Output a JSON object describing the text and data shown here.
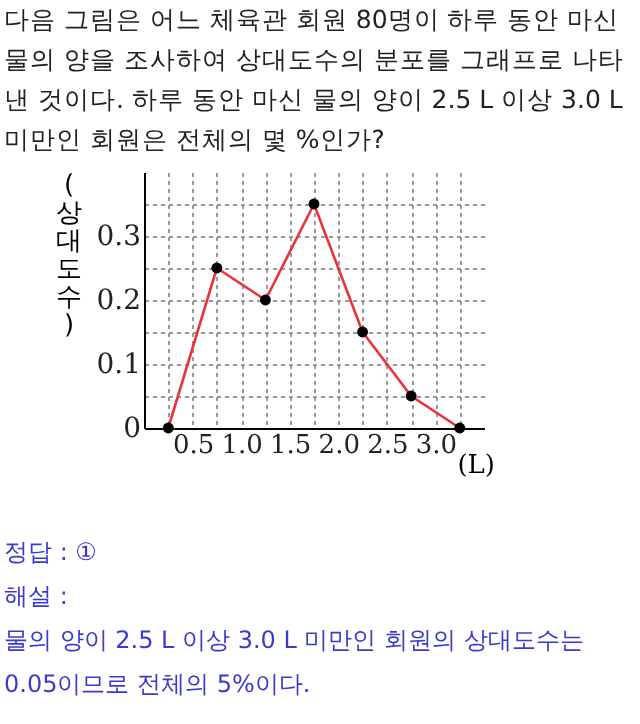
{
  "chart_data": {
    "type": "line",
    "title": "다음 그림은 어느 체육관 회원 80명이 하루 동안 마신 물의 양을 조사하여 상대도수의 분포를 그래프로 나타낸 것이다. 하루 동안 마신 물의 양이 2.5 L 이상 3.0 L 미만인 회원은 전체의 몇 %인가?",
    "xlabel": "(L)",
    "ylabel": "(상대도수)",
    "x": [
      0.25,
      0.75,
      1.25,
      1.75,
      2.25,
      2.75,
      3.25
    ],
    "series": [
      {
        "color": "#e8323c",
        "values": [
          0,
          0.25,
          0.2,
          0.35,
          0.15,
          0.05,
          0
        ]
      }
    ],
    "xlim": [
      0,
      3.5
    ],
    "xticks": [
      {
        "value": 0.25,
        "label": null
      },
      {
        "value": 0.5,
        "label": "0.5"
      },
      {
        "value": 0.75,
        "label": null
      },
      {
        "value": 1,
        "label": "1.0"
      },
      {
        "value": 1.25,
        "label": null
      },
      {
        "value": 1.5,
        "label": "1.5"
      },
      {
        "value": 1.75,
        "label": null
      },
      {
        "value": 2,
        "label": "2.0"
      },
      {
        "value": 2.25,
        "label": null
      },
      {
        "value": 2.5,
        "label": "2.5"
      },
      {
        "value": 2.75,
        "label": null
      },
      {
        "value": 3,
        "label": "3.0"
      },
      {
        "value": 3.25,
        "label": null
      }
    ],
    "ylim": [
      0,
      0.4
    ],
    "yticks": [
      {
        "value": 0,
        "label": "0"
      },
      {
        "value": 0.05,
        "label": null
      },
      {
        "value": 0.1,
        "label": "0.1"
      },
      {
        "value": 0.15,
        "label": null
      },
      {
        "value": 0.2,
        "label": "0.2"
      },
      {
        "value": 0.25,
        "label": null
      },
      {
        "value": 0.3,
        "label": "0.3"
      },
      {
        "value": 0.35,
        "label": null
      }
    ],
    "grid": true,
    "marker": "circle",
    "line_style": "solid",
    "annotations": [
      "정답 : ①",
      "해설 :",
      "물의 양이 2.5 L 이상 3.0 L 미만인 회원의 상대도수는 0.05이므로 전체의 5%이다."
    ]
  }
}
